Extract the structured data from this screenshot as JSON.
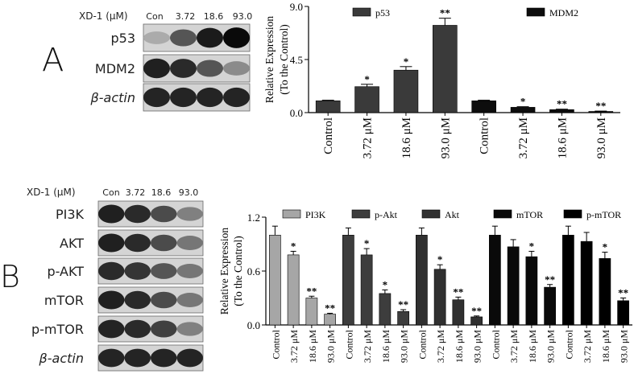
{
  "panels": [
    {
      "letter": "A",
      "blot": {
        "title": "XD-1 (μM)",
        "lanes": [
          "Con",
          "3.72",
          "18.6",
          "93.0"
        ],
        "rows": [
          {
            "label": "p53",
            "intensity": [
              0.25,
              0.65,
              0.92,
              1.0
            ]
          },
          {
            "label": "MDM2",
            "intensity": [
              0.9,
              0.85,
              0.65,
              0.4
            ]
          },
          {
            "label": "β-actin",
            "intensity": [
              0.88,
              0.88,
              0.88,
              0.88
            ]
          }
        ]
      }
    },
    {
      "letter": "B",
      "blot": {
        "title": "XD-1 (μM)",
        "lanes": [
          "Con",
          "3.72",
          "18.6",
          "93.0"
        ],
        "rows": [
          {
            "label": "PI3K",
            "intensity": [
              0.9,
              0.85,
              0.7,
              0.45
            ]
          },
          {
            "label": "AKT",
            "intensity": [
              0.9,
              0.85,
              0.7,
              0.5
            ]
          },
          {
            "label": "p-AKT",
            "intensity": [
              0.85,
              0.8,
              0.65,
              0.5
            ]
          },
          {
            "label": "mTOR",
            "intensity": [
              0.9,
              0.85,
              0.7,
              0.5
            ]
          },
          {
            "label": "p-mTOR",
            "intensity": [
              0.88,
              0.85,
              0.75,
              0.45
            ]
          },
          {
            "label": "β-actin",
            "intensity": [
              0.88,
              0.88,
              0.88,
              0.88
            ]
          }
        ]
      }
    }
  ],
  "chart_data": [
    {
      "type": "bar",
      "ylabel_lines": [
        "Relative Expression",
        "(To the Control)"
      ],
      "ylim": [
        0,
        9.0
      ],
      "yticks": [
        "0.0",
        "4.5",
        "9.0"
      ],
      "categories": [
        "Control",
        "3.72 μM",
        "18.6 μM",
        "93.0 μM"
      ],
      "series": [
        {
          "name": "p53",
          "color": "#3a3a3a",
          "values": [
            1.0,
            2.2,
            3.6,
            7.4
          ],
          "errors": [
            0.05,
            0.2,
            0.3,
            0.6
          ],
          "sig": [
            "",
            "*",
            "*",
            "**"
          ]
        },
        {
          "name": "MDM2",
          "color": "#0d0d0d",
          "values": [
            1.0,
            0.45,
            0.25,
            0.1
          ],
          "errors": [
            0.05,
            0.05,
            0.04,
            0.03
          ],
          "sig": [
            "",
            "*",
            "**",
            "**"
          ]
        }
      ]
    },
    {
      "type": "bar",
      "ylabel_lines": [
        "Relative Expression",
        "(To the Control)"
      ],
      "ylim": [
        0,
        1.2
      ],
      "yticks": [
        "0.0",
        "0.6",
        "1.2"
      ],
      "categories": [
        "Control",
        "3.72 μM",
        "18.6 μM",
        "93.0 μM"
      ],
      "series": [
        {
          "name": "PI3K",
          "color": "#a6a6a6",
          "values": [
            1.0,
            0.78,
            0.3,
            0.12
          ],
          "errors": [
            0.1,
            0.04,
            0.02,
            0.01
          ],
          "sig": [
            "",
            "*",
            "**",
            "**"
          ]
        },
        {
          "name": "p-Akt",
          "color": "#3d3d3d",
          "values": [
            1.0,
            0.78,
            0.35,
            0.15
          ],
          "errors": [
            0.08,
            0.07,
            0.04,
            0.02
          ],
          "sig": [
            "",
            "*",
            "*",
            "**"
          ]
        },
        {
          "name": "Akt",
          "color": "#303030",
          "values": [
            1.0,
            0.62,
            0.28,
            0.09
          ],
          "errors": [
            0.08,
            0.05,
            0.03,
            0.01
          ],
          "sig": [
            "",
            "*",
            "**",
            "**"
          ]
        },
        {
          "name": "mTOR",
          "color": "#0a0a0a",
          "values": [
            1.0,
            0.87,
            0.76,
            0.42
          ],
          "errors": [
            0.1,
            0.08,
            0.06,
            0.03
          ],
          "sig": [
            "",
            "",
            "*",
            "**"
          ]
        },
        {
          "name": "p-mTOR",
          "color": "#000000",
          "values": [
            1.0,
            0.93,
            0.74,
            0.27
          ],
          "errors": [
            0.1,
            0.1,
            0.07,
            0.03
          ],
          "sig": [
            "",
            "",
            "*",
            "**"
          ]
        }
      ]
    }
  ]
}
